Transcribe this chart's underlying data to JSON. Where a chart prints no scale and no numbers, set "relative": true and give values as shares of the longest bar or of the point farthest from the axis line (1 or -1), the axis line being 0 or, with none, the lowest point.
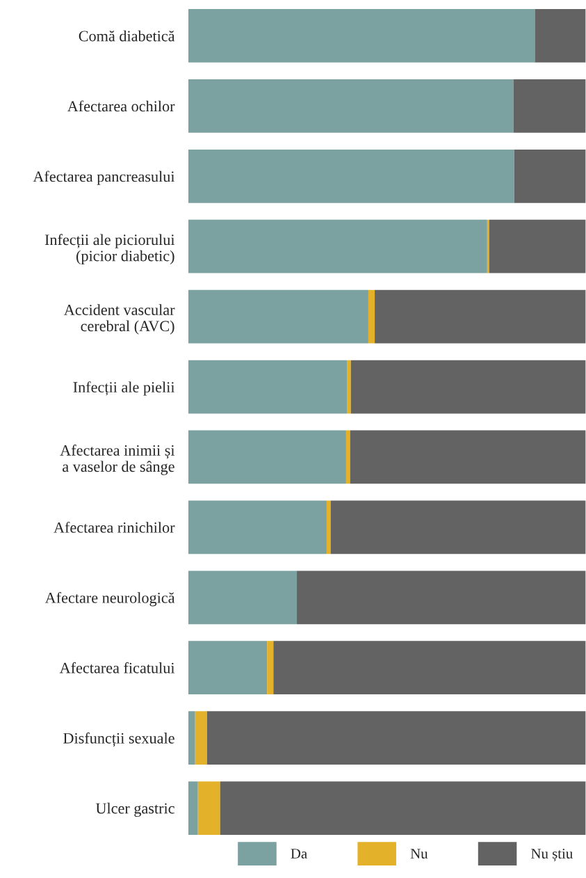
{
  "chart_data": {
    "type": "bar",
    "orientation": "horizontal",
    "stacked": true,
    "relative": true,
    "legend": "bottom right",
    "categories": [
      "Comă diabetică",
      "Afectarea ochilor",
      "Afectarea pancreasului",
      "Infecții ale piciorului\n(picior diabetic)",
      "Accident vascular\ncerebral (AVC)",
      "Infecții ale pielii",
      "Afectarea inimii și\na vaselor de sânge",
      "Afectarea rinichilor",
      "Afectare neurologică",
      "Afectarea ficatului",
      "Disfuncții sexuale",
      "Ulcer gastric"
    ],
    "series": [
      {
        "name": "Da",
        "color": "#7ba1a1",
        "values": [
          0.872,
          0.818,
          0.82,
          0.752,
          0.453,
          0.399,
          0.397,
          0.348,
          0.273,
          0.198,
          0.017,
          0.024
        ]
      },
      {
        "name": "Nu",
        "color": "#e3b22a",
        "values": [
          0,
          0,
          0,
          0.005,
          0.016,
          0.01,
          0.01,
          0.01,
          0,
          0.016,
          0.03,
          0.056
        ]
      },
      {
        "name": "Nu știu",
        "color": "#636363",
        "values": [
          0.128,
          0.182,
          0.18,
          0.243,
          0.531,
          0.591,
          0.593,
          0.642,
          0.727,
          0.786,
          0.953,
          0.92
        ]
      }
    ]
  }
}
